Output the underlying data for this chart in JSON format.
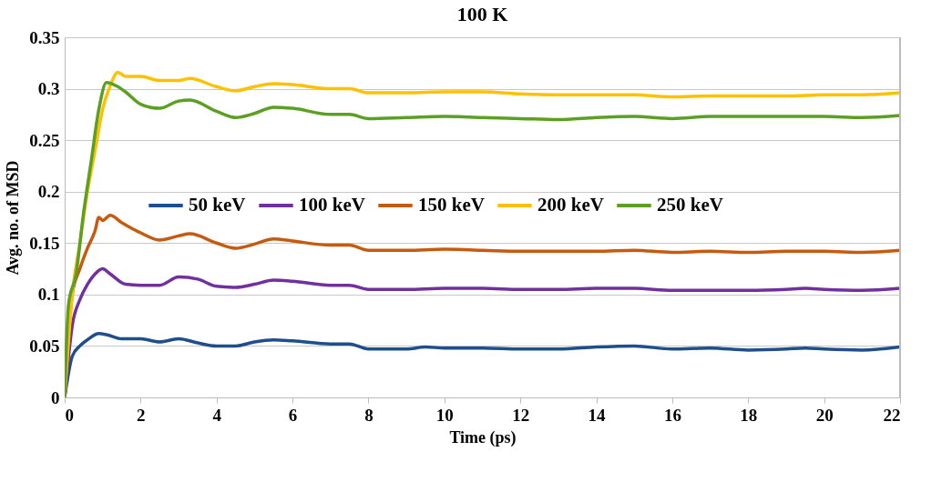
{
  "chart_data": {
    "type": "line",
    "title": "100 K",
    "xlabel": "Time (ps)",
    "ylabel": "Avg. no. of MSD",
    "xlim": [
      0,
      22
    ],
    "xticks": [
      0,
      2,
      4,
      6,
      8,
      10,
      12,
      14,
      16,
      18,
      20,
      22
    ],
    "ylim": [
      0,
      0.35
    ],
    "yticks": [
      0,
      0.05,
      0.1,
      0.15,
      0.2,
      0.25,
      0.3,
      0.35
    ],
    "grid": "y",
    "legend": "center",
    "marker": "none",
    "line_style": "solid",
    "series": [
      {
        "name": "50 keV",
        "color": "#1f4e8c",
        "x": [
          0,
          0.2,
          0.4,
          0.6,
          0.9,
          1.1,
          1.5,
          2,
          2.5,
          3,
          3.5,
          4,
          4.5,
          5,
          5.5,
          6,
          7,
          7.5,
          8,
          9,
          9.5,
          10,
          11,
          12,
          13,
          14,
          15,
          16,
          17,
          18,
          19,
          19.5,
          20,
          21,
          22
        ],
        "values": [
          0,
          0.04,
          0.05,
          0.056,
          0.062,
          0.061,
          0.057,
          0.057,
          0.054,
          0.057,
          0.053,
          0.05,
          0.05,
          0.054,
          0.056,
          0.055,
          0.052,
          0.052,
          0.047,
          0.047,
          0.049,
          0.048,
          0.048,
          0.047,
          0.047,
          0.049,
          0.05,
          0.047,
          0.048,
          0.046,
          0.047,
          0.048,
          0.047,
          0.046,
          0.049
        ]
      },
      {
        "name": "100 keV",
        "color": "#7030a0",
        "x": [
          0,
          0.2,
          0.4,
          0.6,
          0.8,
          1,
          1.2,
          1.6,
          2,
          2.5,
          3,
          3.5,
          4,
          4.5,
          5,
          5.5,
          6,
          7,
          7.5,
          8,
          9,
          10,
          11,
          12,
          13,
          14,
          15,
          16,
          17,
          18,
          19,
          19.5,
          20,
          21,
          22
        ],
        "values": [
          0,
          0.07,
          0.095,
          0.11,
          0.12,
          0.125,
          0.12,
          0.11,
          0.109,
          0.109,
          0.117,
          0.115,
          0.108,
          0.107,
          0.11,
          0.114,
          0.113,
          0.109,
          0.109,
          0.105,
          0.105,
          0.106,
          0.106,
          0.105,
          0.105,
          0.106,
          0.106,
          0.104,
          0.104,
          0.104,
          0.105,
          0.106,
          0.105,
          0.104,
          0.106
        ]
      },
      {
        "name": "150 keV",
        "color": "#c55a11",
        "x": [
          0,
          0.2,
          0.4,
          0.6,
          0.8,
          0.9,
          1,
          1.2,
          1.5,
          2,
          2.5,
          3,
          3.3,
          4,
          4.5,
          5,
          5.5,
          6,
          7,
          7.5,
          8,
          9,
          10,
          11,
          12,
          13,
          14,
          15,
          16,
          17,
          18,
          19,
          20,
          21,
          22
        ],
        "values": [
          0,
          0.1,
          0.125,
          0.145,
          0.162,
          0.175,
          0.172,
          0.177,
          0.17,
          0.16,
          0.153,
          0.157,
          0.159,
          0.15,
          0.145,
          0.149,
          0.154,
          0.152,
          0.148,
          0.148,
          0.143,
          0.143,
          0.144,
          0.143,
          0.142,
          0.142,
          0.142,
          0.143,
          0.141,
          0.142,
          0.141,
          0.142,
          0.142,
          0.141,
          0.143
        ]
      },
      {
        "name": "200 keV",
        "color": "#ffc000",
        "x": [
          0,
          0.2,
          0.4,
          0.6,
          0.8,
          1,
          1.2,
          1.4,
          1.6,
          2,
          2.5,
          3,
          3.3,
          4,
          4.5,
          5,
          5.5,
          6,
          7,
          7.5,
          8,
          9,
          10,
          11,
          12,
          13,
          14,
          15,
          16,
          17,
          18,
          19,
          20,
          21,
          22
        ],
        "values": [
          0,
          0.1,
          0.15,
          0.2,
          0.24,
          0.28,
          0.303,
          0.316,
          0.312,
          0.312,
          0.308,
          0.308,
          0.31,
          0.302,
          0.298,
          0.302,
          0.305,
          0.304,
          0.3,
          0.3,
          0.296,
          0.296,
          0.297,
          0.297,
          0.295,
          0.294,
          0.294,
          0.294,
          0.292,
          0.293,
          0.293,
          0.293,
          0.294,
          0.294,
          0.296
        ]
      },
      {
        "name": "250 keV",
        "color": "#5b9f23",
        "x": [
          0,
          0.1,
          0.3,
          0.5,
          0.7,
          0.9,
          1.1,
          1.4,
          1.6,
          2,
          2.5,
          3,
          3.3,
          4,
          4.5,
          5,
          5.5,
          6,
          7,
          7.5,
          8,
          9,
          10,
          11,
          12,
          13,
          14,
          15,
          16,
          17,
          18,
          19,
          20,
          21,
          22
        ],
        "values": [
          0,
          0.09,
          0.12,
          0.18,
          0.23,
          0.28,
          0.306,
          0.302,
          0.297,
          0.285,
          0.281,
          0.288,
          0.289,
          0.278,
          0.272,
          0.276,
          0.282,
          0.281,
          0.275,
          0.275,
          0.271,
          0.272,
          0.273,
          0.272,
          0.271,
          0.27,
          0.272,
          0.273,
          0.271,
          0.273,
          0.273,
          0.273,
          0.273,
          0.272,
          0.274
        ]
      }
    ]
  }
}
